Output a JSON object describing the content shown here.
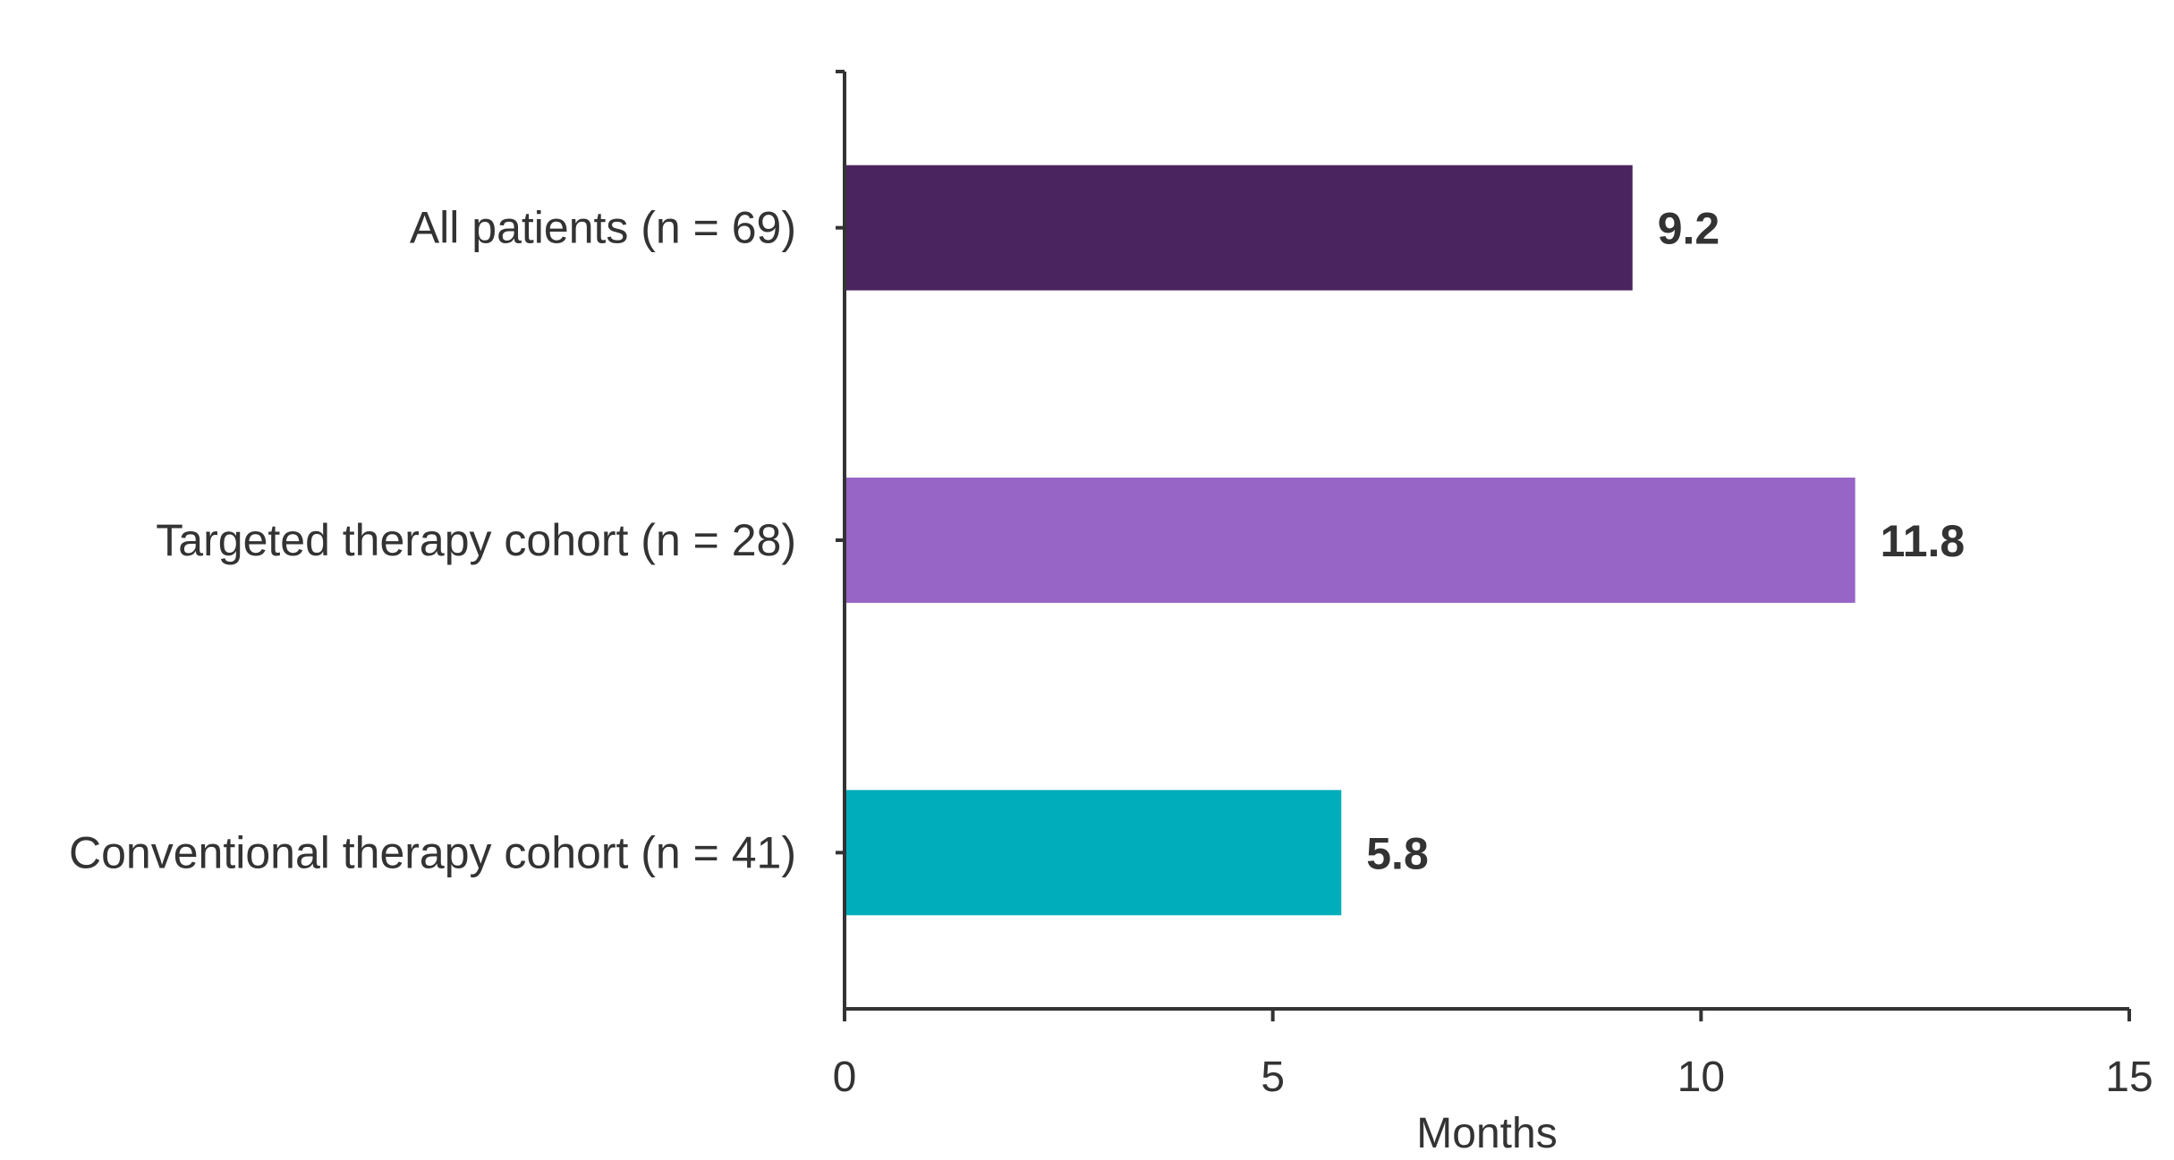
{
  "chart_data": {
    "type": "bar",
    "orientation": "horizontal",
    "categories": [
      "All patients (n = 69)",
      "Targeted therapy cohort (n = 28)",
      "Conventional therapy cohort (n = 41)"
    ],
    "values": [
      9.2,
      11.8,
      5.8
    ],
    "value_labels": [
      "9.2",
      "11.8",
      "5.8"
    ],
    "colors": [
      "#4a245e",
      "#9665c6",
      "#00adbb"
    ],
    "title": "",
    "xlabel": "Months",
    "ylabel": "",
    "xlim": [
      0,
      15
    ],
    "x_ticks": [
      0,
      5,
      10,
      15
    ],
    "x_tick_labels": [
      "0",
      "5",
      "10",
      "15"
    ],
    "grid": false,
    "legend": "none"
  }
}
